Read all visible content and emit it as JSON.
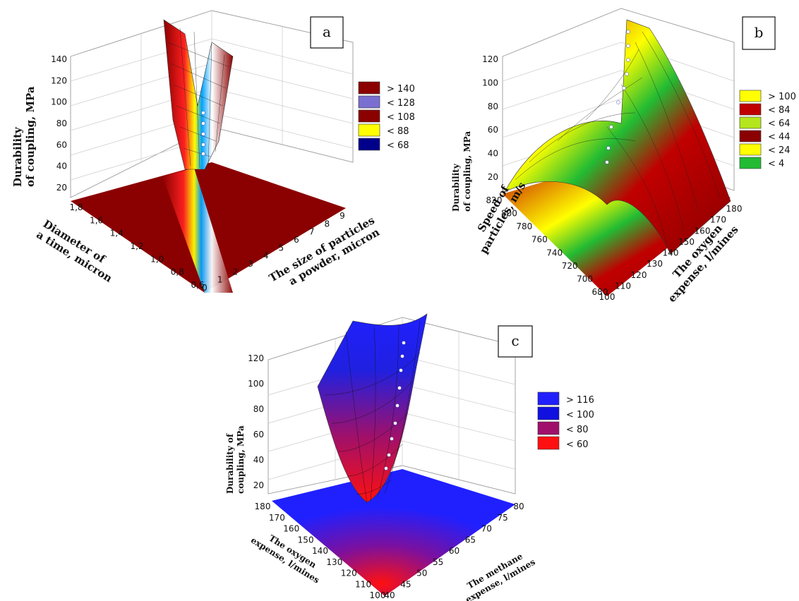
{
  "chart_data": [
    {
      "type": "surface3d",
      "panel_label": "a",
      "zlabel_lines": [
        "Durability",
        "of coupling, MPa"
      ],
      "xlabel_lines": [
        "The size of particles",
        "a powder, micron"
      ],
      "ylabel_lines": [
        "Diameter of",
        "a time, micron"
      ],
      "x_ticks": [
        "0",
        "1",
        "2",
        "3",
        "4",
        "5",
        "6",
        "7",
        "8",
        "9"
      ],
      "y_ticks": [
        "0,6",
        "0,8",
        "1,0",
        "1,2",
        "1,4",
        "1,6",
        "1,8"
      ],
      "z_ticks": [
        "20",
        "40",
        "60",
        "80",
        "100",
        "120",
        "140"
      ],
      "xlim": [
        0,
        9
      ],
      "ylim": [
        0.6,
        1.8
      ],
      "zlim": [
        20,
        140
      ],
      "legend": [
        {
          "label": "> 140",
          "color": "#8b0000"
        },
        {
          "label": "< 128",
          "color": "#7a6fd0"
        },
        {
          "label": "< 108",
          "color": "#8b0000"
        },
        {
          "label": "< 88",
          "color": "#ffff00"
        },
        {
          "label": "< 68",
          "color": "#00008b"
        }
      ]
    },
    {
      "type": "surface3d",
      "panel_label": "b",
      "zlabel_lines": [
        "Durability",
        "of coupling, MPa"
      ],
      "xlabel_lines": [
        "The oxygen",
        "expense, l/mines"
      ],
      "ylabel_lines": [
        "Speed of",
        "particles, m/s"
      ],
      "x_ticks": [
        "100",
        "110",
        "120",
        "130",
        "140",
        "150",
        "160",
        "170",
        "180"
      ],
      "y_ticks": [
        "680",
        "700",
        "720",
        "740",
        "760",
        "780",
        "800",
        "820"
      ],
      "z_ticks": [
        "20",
        "40",
        "60",
        "80",
        "100",
        "120"
      ],
      "xlim": [
        100,
        180
      ],
      "ylim": [
        680,
        820
      ],
      "zlim": [
        20,
        120
      ],
      "legend": [
        {
          "label": "> 100",
          "color": "#ffff00"
        },
        {
          "label": "< 84",
          "color": "#c00000"
        },
        {
          "label": "< 64",
          "color": "#b5e61d"
        },
        {
          "label": "< 44",
          "color": "#8b0000"
        },
        {
          "label": "< 24",
          "color": "#ffff00"
        },
        {
          "label": "< 4",
          "color": "#22bb33"
        }
      ]
    },
    {
      "type": "surface3d",
      "panel_label": "c",
      "zlabel_lines": [
        "Durability of",
        "coupling, MPa"
      ],
      "xlabel_lines": [
        "The methane",
        "expense, l/mines"
      ],
      "ylabel_lines": [
        "The oxygen",
        "expense, l/mines"
      ],
      "x_ticks": [
        "40",
        "45",
        "50",
        "55",
        "60",
        "65",
        "70",
        "75",
        "80"
      ],
      "y_ticks": [
        "100",
        "110",
        "120",
        "130",
        "140",
        "150",
        "160",
        "170",
        "180"
      ],
      "z_ticks": [
        "20",
        "40",
        "60",
        "80",
        "100",
        "120"
      ],
      "xlim": [
        40,
        80
      ],
      "ylim": [
        100,
        180
      ],
      "zlim": [
        20,
        120
      ],
      "legend": [
        {
          "label": "> 116",
          "color": "#2020ff"
        },
        {
          "label": "< 100",
          "color": "#1010e0"
        },
        {
          "label": "< 80",
          "color": "#a0106a"
        },
        {
          "label": "< 60",
          "color": "#ff1010"
        }
      ]
    }
  ]
}
